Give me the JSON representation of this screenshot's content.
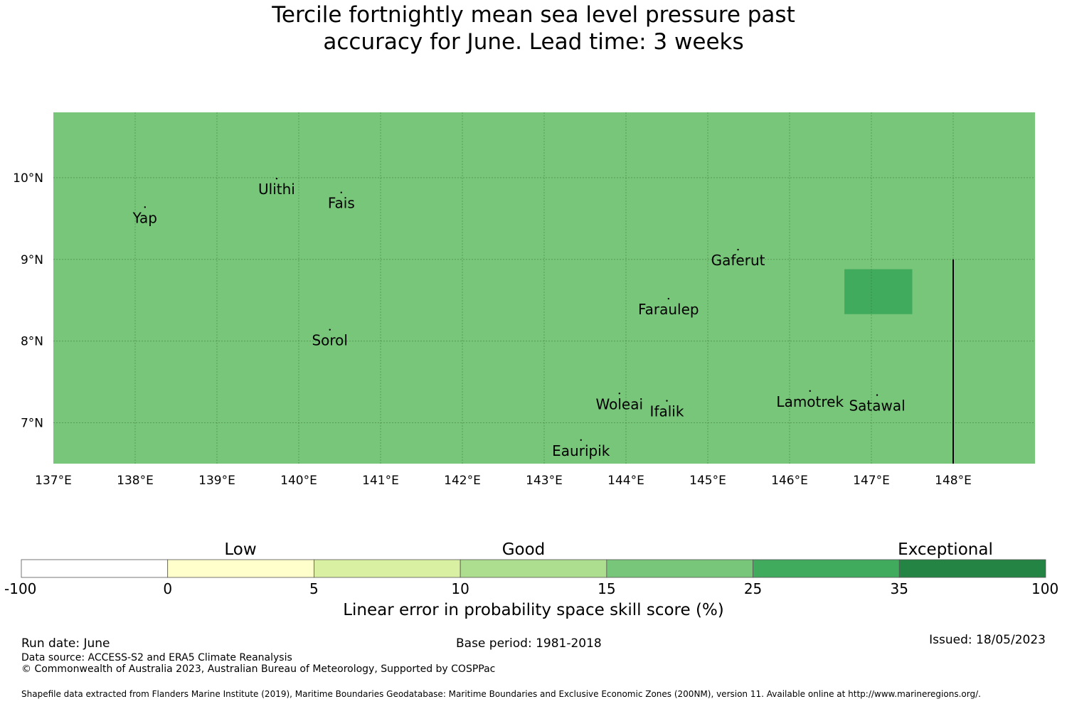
{
  "title": {
    "line1": "Tercile fortnightly mean sea level pressure past",
    "line2": "accuracy for June. Lead time: 3 weeks"
  },
  "map": {
    "lon_range": [
      137.0,
      149.0
    ],
    "lat_range": [
      6.5,
      10.8
    ],
    "background_color": "#78c679",
    "lon_ticks": [
      {
        "value": 137,
        "label": "137°E"
      },
      {
        "value": 138,
        "label": "138°E"
      },
      {
        "value": 139,
        "label": "139°E"
      },
      {
        "value": 140,
        "label": "140°E"
      },
      {
        "value": 141,
        "label": "141°E"
      },
      {
        "value": 142,
        "label": "142°E"
      },
      {
        "value": 143,
        "label": "143°E"
      },
      {
        "value": 144,
        "label": "144°E"
      },
      {
        "value": 145,
        "label": "145°E"
      },
      {
        "value": 146,
        "label": "146°E"
      },
      {
        "value": 147,
        "label": "147°E"
      },
      {
        "value": 148,
        "label": "148°E"
      }
    ],
    "lat_ticks": [
      {
        "value": 10,
        "label": "10°N"
      },
      {
        "value": 9,
        "label": "9°N"
      },
      {
        "value": 8,
        "label": "8°N"
      },
      {
        "value": 7,
        "label": "7°N"
      }
    ],
    "grid_lons": [
      138,
      139,
      140,
      141,
      142,
      143,
      144,
      145,
      146,
      147,
      148
    ],
    "grid_lats": [
      10,
      9,
      8,
      7
    ],
    "grid": true,
    "boundary_line": {
      "lon": 148.0,
      "lat_from": 6.5,
      "lat_to": 9.0,
      "color": "#000000"
    },
    "cells": [
      {
        "lon_min": 146.67,
        "lon_max": 147.5,
        "lat_min": 8.33,
        "lat_max": 8.88,
        "color": "#41ab5d"
      }
    ],
    "places": [
      {
        "name": "Yap",
        "lon": 138.12,
        "lat": 9.5
      },
      {
        "name": "Ulithi",
        "lon": 139.73,
        "lat": 9.85
      },
      {
        "name": "Fais",
        "lon": 140.52,
        "lat": 9.68
      },
      {
        "name": "Gaferut",
        "lon": 145.37,
        "lat": 8.98
      },
      {
        "name": "Faraulep",
        "lon": 144.52,
        "lat": 8.38
      },
      {
        "name": "Sorol",
        "lon": 140.38,
        "lat": 8.0
      },
      {
        "name": "Woleai",
        "lon": 143.92,
        "lat": 7.22
      },
      {
        "name": "Ifalik",
        "lon": 144.5,
        "lat": 7.13
      },
      {
        "name": "Lamotrek",
        "lon": 146.25,
        "lat": 7.25
      },
      {
        "name": "Satawal",
        "lon": 147.07,
        "lat": 7.2
      },
      {
        "name": "Eauripik",
        "lon": 143.45,
        "lat": 6.65
      }
    ]
  },
  "colorbar": {
    "headings": [
      "Low",
      "Good",
      "Exceptional"
    ],
    "bins": [
      {
        "from": "-100",
        "to": "0",
        "color": "#ffffff"
      },
      {
        "from": "0",
        "to": "5",
        "color": "#ffffcc"
      },
      {
        "from": "5",
        "to": "10",
        "color": "#d9f0a3"
      },
      {
        "from": "10",
        "to": "15",
        "color": "#addd8e"
      },
      {
        "from": "15",
        "to": "25",
        "color": "#78c679"
      },
      {
        "from": "25",
        "to": "35",
        "color": "#41ab5d"
      },
      {
        "from": "35",
        "to": "100",
        "color": "#238443"
      }
    ],
    "tick_labels": [
      "-100",
      "0",
      "5",
      "10",
      "15",
      "25",
      "35",
      "100"
    ],
    "label": "Linear error in probability space skill score (%)"
  },
  "footer": {
    "run_date": "Run date: June",
    "base_period": "Base period: 1981-2018",
    "issued": "Issued: 18/05/2023",
    "data_source": "Data source: ACCESS-S2 and ERA5 Climate Reanalysis",
    "copyright": "© Commonwealth of Australia 2023, Australian Bureau of Meteorology, Supported by COSPPac",
    "shapefile": "Shapefile data extracted from Flanders Marine Institute (2019), Maritime Boundaries Geodatabase: Maritime Boundaries and Exclusive Economic Zones (200NM), version 11. Available online at http://www.marineregions.org/."
  }
}
